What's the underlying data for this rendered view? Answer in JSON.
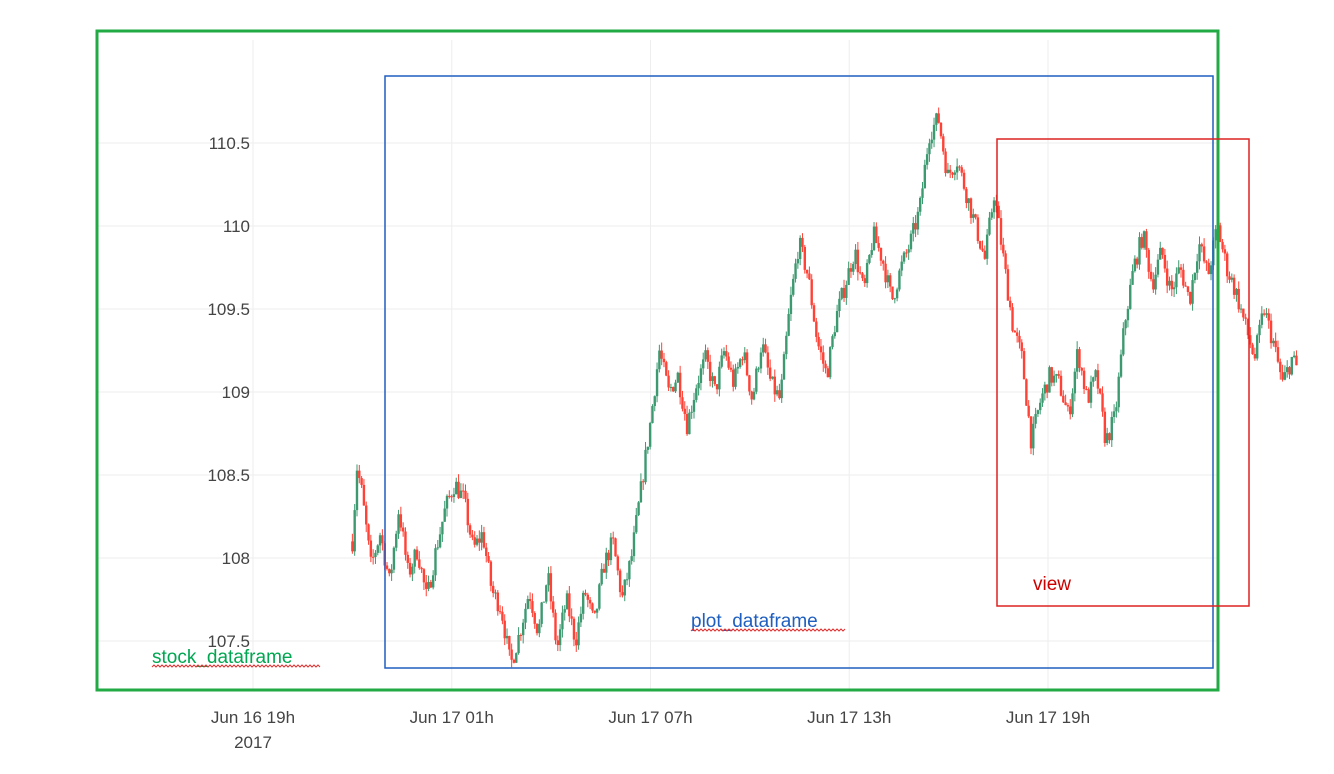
{
  "chart_data": {
    "type": "candlestick",
    "x_axis": {
      "type": "date",
      "range": [
        "2017-06-16 16:00",
        "2017-06-18 04:00"
      ],
      "tick_labels": [
        {
          "label": "Jun 16 19h",
          "sublabel": "2017",
          "x": "2017-06-16 19:00"
        },
        {
          "label": "Jun 17 01h",
          "sublabel": "",
          "x": "2017-06-17 01:00"
        },
        {
          "label": "Jun 17 07h",
          "sublabel": "",
          "x": "2017-06-17 07:00"
        },
        {
          "label": "Jun 17 13h",
          "sublabel": "",
          "x": "2017-06-17 13:00"
        },
        {
          "label": "Jun 17 19h",
          "sublabel": "",
          "x": "2017-06-17 19:00"
        }
      ]
    },
    "y_axis": {
      "range": [
        107.35,
        110.85
      ],
      "tick_labels": [
        {
          "label": "107.5",
          "y": 107.5
        },
        {
          "label": "108",
          "y": 108
        },
        {
          "label": "108.5",
          "y": 108.5
        },
        {
          "label": "109",
          "y": 109
        },
        {
          "label": "109.5",
          "y": 109.5
        },
        {
          "label": "110",
          "y": 110
        },
        {
          "label": "110.5",
          "y": 110.5
        }
      ]
    },
    "grid": true,
    "colors": {
      "increasing": "#3d9970",
      "decreasing": "#ff4136",
      "grid": "#eeeeee"
    },
    "series": {
      "start": "2017-06-16 22:00",
      "end": "2017-06-18 02:30",
      "anchors": [
        [
          0,
          108.1
        ],
        [
          0.5,
          108.55
        ],
        [
          1,
          108.4
        ],
        [
          2,
          107.95
        ],
        [
          3,
          108.15
        ],
        [
          4,
          107.85
        ],
        [
          5,
          108.3
        ],
        [
          6,
          107.9
        ],
        [
          7,
          108.05
        ],
        [
          8,
          107.75
        ],
        [
          9,
          108.05
        ],
        [
          10,
          108.3
        ],
        [
          11,
          108.45
        ],
        [
          12,
          108.35
        ],
        [
          13,
          108.05
        ],
        [
          14,
          108.15
        ],
        [
          15,
          107.8
        ],
        [
          16,
          107.7
        ],
        [
          17,
          107.35
        ],
        [
          18,
          107.55
        ],
        [
          19,
          107.8
        ],
        [
          20,
          107.55
        ],
        [
          21,
          107.9
        ],
        [
          22,
          107.45
        ],
        [
          23,
          107.75
        ],
        [
          24,
          107.5
        ],
        [
          25,
          107.8
        ],
        [
          26,
          107.6
        ],
        [
          27,
          107.95
        ],
        [
          28,
          108.1
        ],
        [
          29,
          107.75
        ],
        [
          30,
          108.0
        ],
        [
          31,
          108.4
        ],
        [
          32,
          108.8
        ],
        [
          33,
          109.25
        ],
        [
          34,
          109.0
        ],
        [
          35,
          109.1
        ],
        [
          36,
          108.8
        ],
        [
          37,
          109.05
        ],
        [
          38,
          109.2
        ],
        [
          39,
          109.0
        ],
        [
          40,
          109.25
        ],
        [
          41,
          109.05
        ],
        [
          42,
          109.25
        ],
        [
          43,
          108.95
        ],
        [
          44,
          109.3
        ],
        [
          45,
          109.05
        ],
        [
          46,
          108.95
        ],
        [
          47,
          109.5
        ],
        [
          48,
          109.9
        ],
        [
          49,
          109.7
        ],
        [
          50,
          109.3
        ],
        [
          51,
          109.1
        ],
        [
          52,
          109.45
        ],
        [
          53,
          109.65
        ],
        [
          54,
          109.85
        ],
        [
          55,
          109.6
        ],
        [
          56,
          109.95
        ],
        [
          57,
          109.8
        ],
        [
          58,
          109.55
        ],
        [
          59,
          109.75
        ],
        [
          60,
          109.9
        ],
        [
          61,
          110.1
        ],
        [
          62,
          110.55
        ],
        [
          63,
          110.65
        ],
        [
          64,
          110.3
        ],
        [
          65,
          110.4
        ],
        [
          66,
          110.2
        ],
        [
          67,
          110.0
        ],
        [
          68,
          109.8
        ],
        [
          69,
          110.2
        ],
        [
          70,
          109.8
        ],
        [
          71,
          109.4
        ],
        [
          72,
          109.2
        ],
        [
          73,
          108.7
        ],
        [
          74,
          108.95
        ],
        [
          75,
          109.1
        ],
        [
          76,
          109.05
        ],
        [
          77,
          108.85
        ],
        [
          78,
          109.25
        ],
        [
          79,
          108.95
        ],
        [
          80,
          109.1
        ],
        [
          81,
          108.7
        ],
        [
          82,
          108.85
        ],
        [
          83,
          109.4
        ],
        [
          84,
          109.75
        ],
        [
          85,
          109.95
        ],
        [
          86,
          109.65
        ],
        [
          87,
          109.85
        ],
        [
          88,
          109.6
        ],
        [
          89,
          109.75
        ],
        [
          90,
          109.55
        ],
        [
          91,
          109.9
        ],
        [
          92,
          109.7
        ],
        [
          93,
          110.0
        ],
        [
          94,
          109.75
        ],
        [
          95,
          109.6
        ],
        [
          96,
          109.4
        ],
        [
          97,
          109.2
        ],
        [
          98,
          109.5
        ],
        [
          99,
          109.3
        ],
        [
          100,
          109.05
        ],
        [
          101,
          109.2
        ],
        [
          101.5,
          109.15
        ]
      ]
    }
  },
  "annotations": [
    {
      "id": "stock",
      "label": "stock_dataframe",
      "color": "#22aa44",
      "label_color": "#00a651"
    },
    {
      "id": "plot",
      "label": "plot_dataframe",
      "color": "#1f5fbf",
      "label_color": "#1f5fbf"
    },
    {
      "id": "view",
      "label": "view",
      "color": "#dd2222",
      "label_color": "#cc0000"
    }
  ]
}
